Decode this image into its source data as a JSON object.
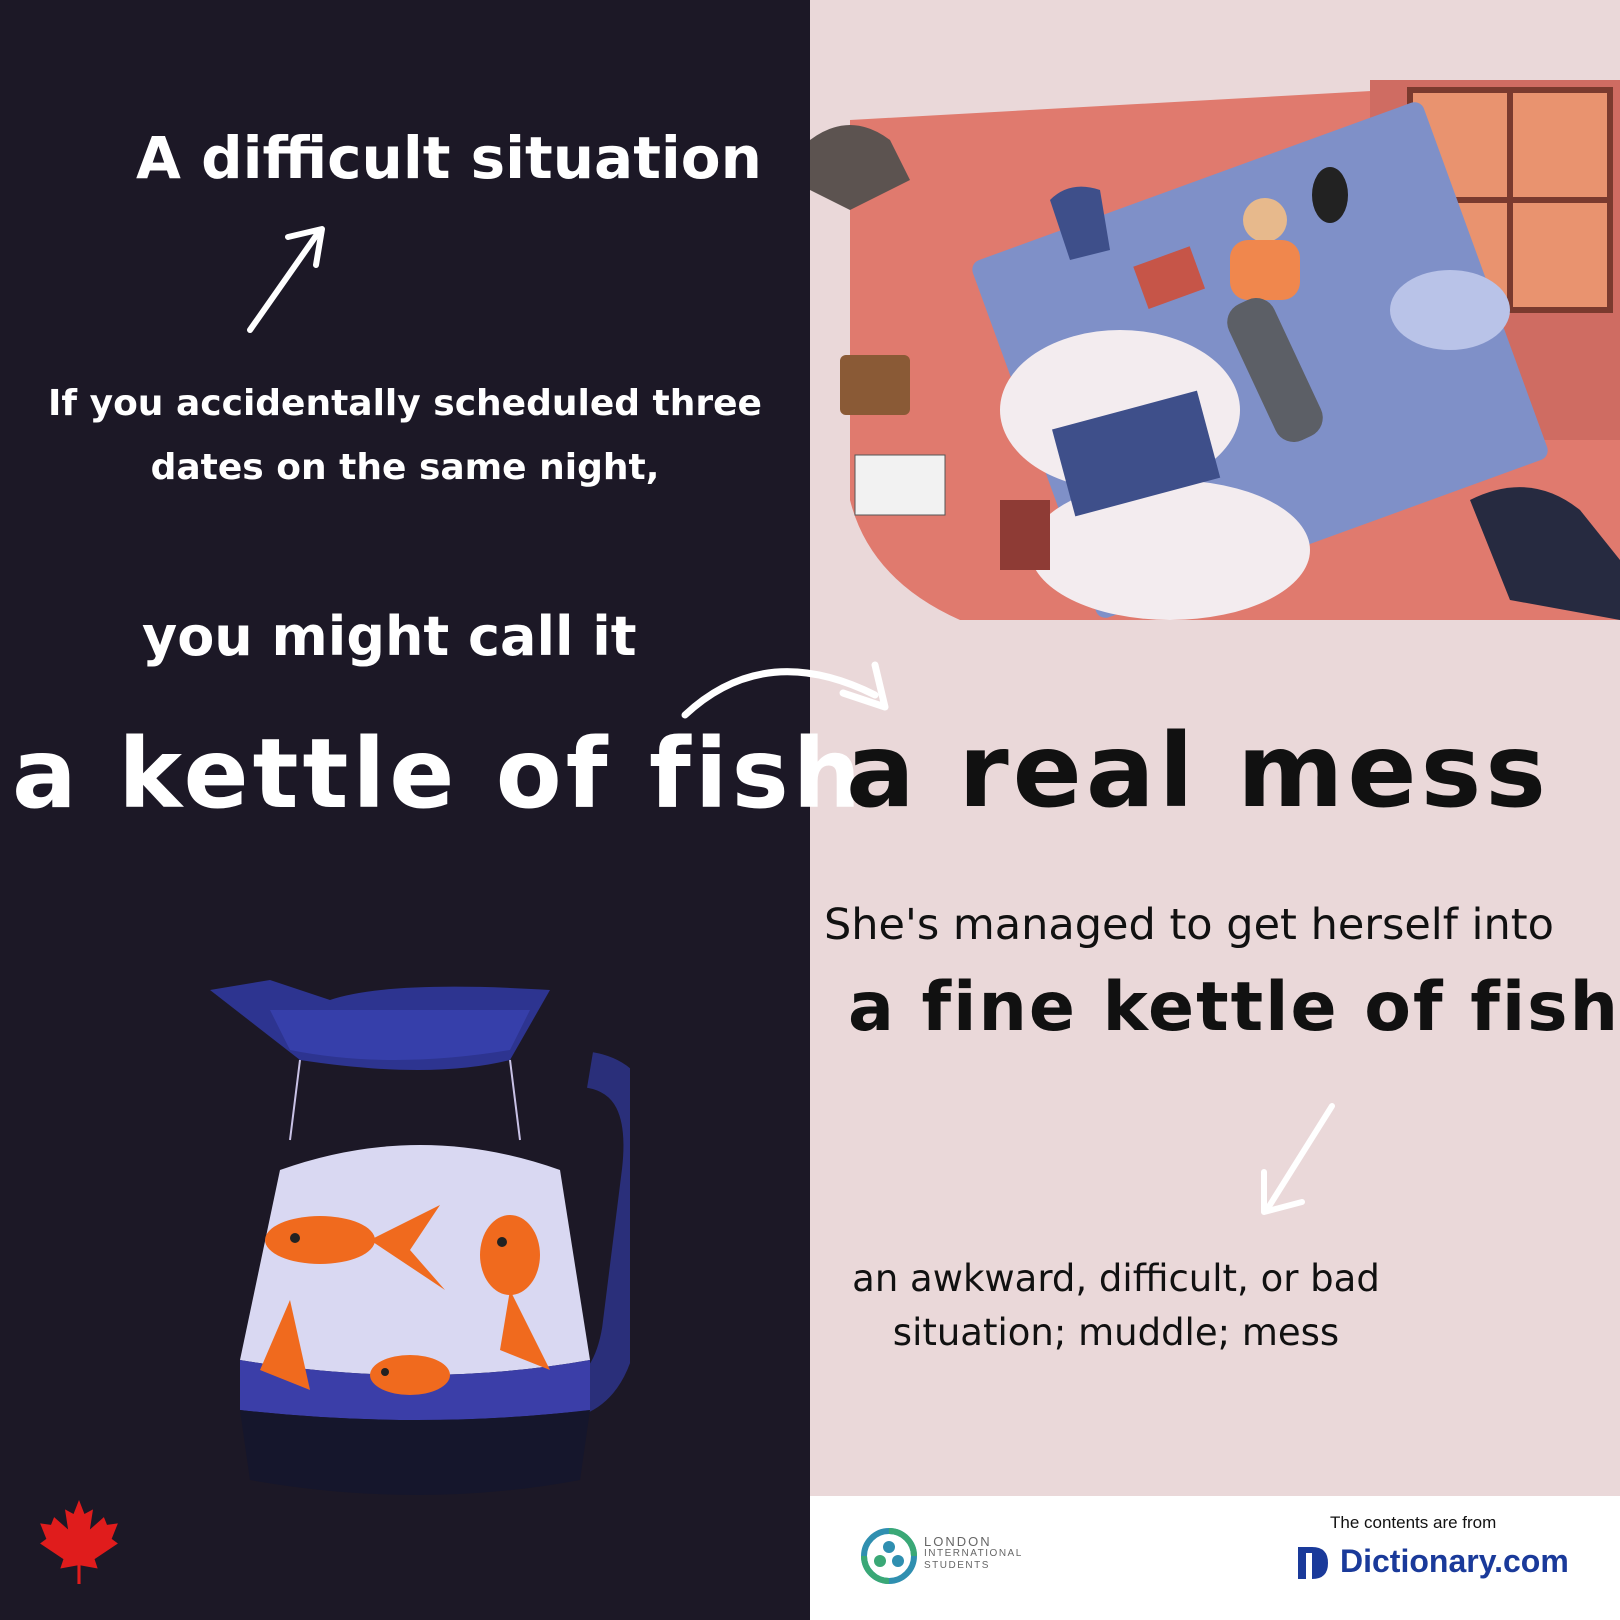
{
  "left": {
    "title": "A difficult situation",
    "context": "If you accidentally scheduled three dates on the same night,",
    "lead_in": "you might call it",
    "idiom": "a kettle of fish"
  },
  "right": {
    "meaning": "a real mess",
    "example_line1": "She's managed to get herself into",
    "example_line2": "a fine kettle of fish!",
    "definition": "an awkward, difficult, or bad situation; muddle; mess"
  },
  "footer": {
    "org_name_line1": "LONDON",
    "org_name_line2": "INTERNATIONAL",
    "org_name_line3": "STUDENTS",
    "credit": "The contents are from",
    "source": "Dictionary.com"
  },
  "colors": {
    "left_bg": "#1c1826",
    "right_bg": "#ead8d9",
    "footer_bg": "#ffffff",
    "accent_red": "#e01c1c",
    "dictionary_blue": "#1a3a9a"
  },
  "icons": [
    "arrow-icon",
    "maple-leaf-icon",
    "dictionary-logo-icon",
    "london-international-students-logo-icon"
  ]
}
